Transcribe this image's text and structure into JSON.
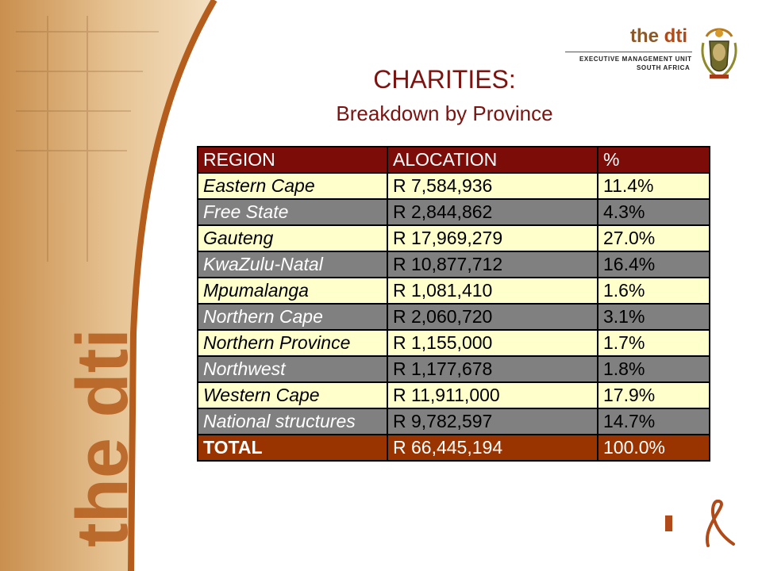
{
  "branding": {
    "logo_the": "the ",
    "logo_dti": "dti",
    "unit_line1": "EXECUTIVE MANAGEMENT UNIT",
    "unit_line2": "SOUTH AFRICA",
    "side_wordmark": "the dti",
    "accent_color": "#b04a18",
    "band_color": "#e9c79a"
  },
  "slide": {
    "title": "CHARITIES:",
    "subtitle": "Breakdown by Province"
  },
  "table": {
    "headers": [
      "REGION",
      "ALOCATION",
      "%"
    ],
    "rows": [
      [
        "Eastern Cape",
        "R 7,584,936",
        "11.4%"
      ],
      [
        "Free State",
        "R 2,844,862",
        "4.3%"
      ],
      [
        "Gauteng",
        "R 17,969,279",
        "27.0%"
      ],
      [
        "KwaZulu-Natal",
        "R 10,877,712",
        "16.4%"
      ],
      [
        "Mpumalanga",
        "R 1,081,410",
        "1.6%"
      ],
      [
        "Northern Cape",
        "R 2,060,720",
        "3.1%"
      ],
      [
        "Northern Province",
        "R 1,155,000",
        "1.7%"
      ],
      [
        "Northwest",
        "R 1,177,678",
        "1.8%"
      ],
      [
        "Western Cape",
        "R 11,911,000",
        "17.9%"
      ],
      [
        "National structures",
        "R 9,782,597",
        "14.7%"
      ]
    ],
    "total": [
      "TOTAL",
      "R 66,445,194",
      "100.0%"
    ]
  }
}
